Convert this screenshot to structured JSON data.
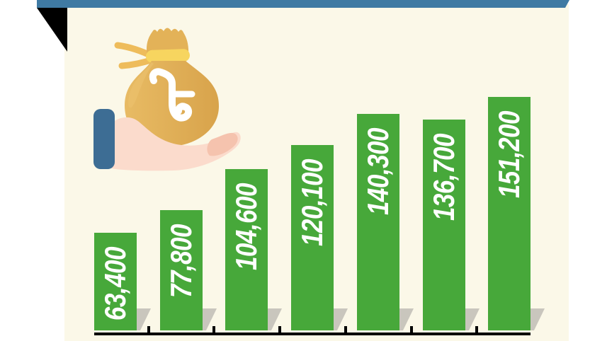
{
  "theme": {
    "page_background": "#ffffff",
    "panel_background": "#fbf8e8",
    "top_accent_bar_color": "#3f7aa3",
    "corner_fold_color": "#000000"
  },
  "icon": {
    "name": "hand-holding-money-bag",
    "currency_symbol_name": "taka-sign",
    "colors": {
      "bag": "#d8a34b",
      "bag_light": "#e8bb64",
      "bag_flap": "#e3b258",
      "tie": "#f7d55f",
      "tie_ribbons": "#eebc5b",
      "hand": "#fbdbcc",
      "hand_shade": "#f5c3ae",
      "cuff": "#3d6d94",
      "symbol": "#ffffff"
    }
  },
  "chart_data": {
    "type": "bar",
    "values": [
      63400,
      77800,
      104600,
      120100,
      140300,
      136700,
      151200
    ],
    "value_labels": [
      "63,400",
      "77,800",
      "104,600",
      "120,100",
      "140,300",
      "136,700",
      "151,200"
    ],
    "categories": [
      "",
      "",
      "",
      "",
      "",
      "",
      ""
    ],
    "title": "",
    "xlabel": "",
    "ylabel": "",
    "ylim": [
      0,
      151200
    ],
    "grid": false,
    "legend": "none",
    "bar_color": "#47a83a",
    "value_label_color": "#ffffff",
    "value_label_rotation_deg": -90,
    "axis_line_color": "#000000",
    "bar_shadow_color": "#c9c6bd",
    "tick_marks_between_bars": true,
    "x_tick_label_text": []
  }
}
